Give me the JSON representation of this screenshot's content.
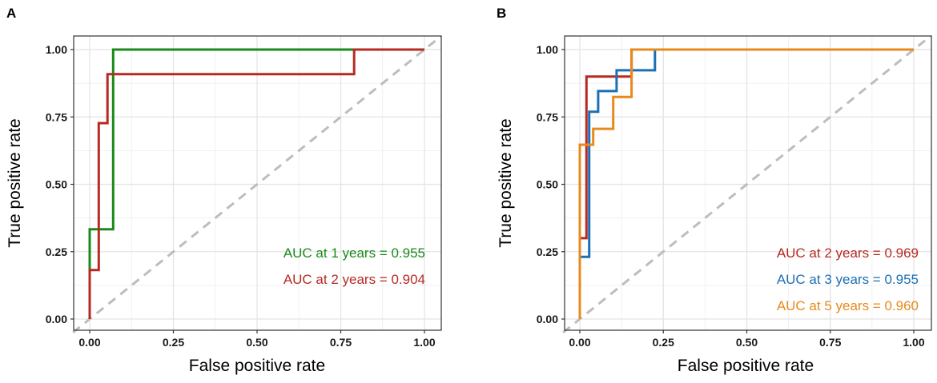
{
  "chart_data": [
    {
      "panel_label": "A",
      "type": "line",
      "xlabel": "False positive rate",
      "ylabel": "True positive rate",
      "xlim": [
        0,
        1
      ],
      "ylim": [
        0,
        1
      ],
      "x_ticks": [
        "0.00",
        "0.25",
        "0.50",
        "0.75",
        "1.00"
      ],
      "y_ticks": [
        "0.00",
        "0.25",
        "0.50",
        "0.75",
        "1.00"
      ],
      "grid": true,
      "legend_position": "bottom-right",
      "reference_line": {
        "color": "#bdbdbd",
        "style": "dashed"
      },
      "series": [
        {
          "name": "AUC at 1 years = 0.955",
          "color": "#1a8a1a",
          "x": [
            0.0,
            0.0,
            0.07,
            0.07,
            1.0
          ],
          "y": [
            0.0,
            0.333,
            0.333,
            1.0,
            1.0
          ]
        },
        {
          "name": "AUC at 2 years = 0.904",
          "color": "#b52b22",
          "x": [
            0.0,
            0.0,
            0.027,
            0.027,
            0.053,
            0.053,
            0.79,
            0.79,
            1.0
          ],
          "y": [
            0.0,
            0.182,
            0.182,
            0.727,
            0.727,
            0.909,
            0.909,
            1.0,
            1.0
          ]
        }
      ]
    },
    {
      "panel_label": "B",
      "type": "line",
      "xlabel": "False positive rate",
      "ylabel": "True positive rate",
      "xlim": [
        0,
        1
      ],
      "ylim": [
        0,
        1
      ],
      "x_ticks": [
        "0.00",
        "0.25",
        "0.50",
        "0.75",
        "1.00"
      ],
      "y_ticks": [
        "0.00",
        "0.25",
        "0.50",
        "0.75",
        "1.00"
      ],
      "grid": true,
      "legend_position": "bottom-right",
      "reference_line": {
        "color": "#bdbdbd",
        "style": "dashed"
      },
      "series": [
        {
          "name": "AUC at 2 years = 0.969",
          "color": "#b52b22",
          "x": [
            0.0,
            0.0,
            0.02,
            0.02,
            0.07,
            0.07,
            0.155,
            0.155,
            1.0
          ],
          "y": [
            0.0,
            0.3,
            0.3,
            0.9,
            0.9,
            0.9,
            0.9,
            1.0,
            1.0
          ]
        },
        {
          "name": "AUC at 3 years = 0.955",
          "color": "#1b6fb5",
          "x": [
            0.0,
            0.0,
            0.028,
            0.028,
            0.055,
            0.055,
            0.11,
            0.11,
            0.155,
            0.155,
            0.225,
            0.225,
            1.0
          ],
          "y": [
            0.0,
            0.231,
            0.231,
            0.769,
            0.769,
            0.846,
            0.846,
            0.923,
            0.923,
            0.923,
            0.923,
            1.0,
            1.0
          ]
        },
        {
          "name": "AUC at 5 years = 0.960",
          "color": "#e8891c",
          "x": [
            0.0,
            0.0,
            0.02,
            0.02,
            0.04,
            0.04,
            0.1,
            0.1,
            0.155,
            0.155,
            1.0
          ],
          "y": [
            0.0,
            0.647,
            0.647,
            0.647,
            0.647,
            0.706,
            0.706,
            0.824,
            0.824,
            1.0,
            1.0
          ]
        }
      ]
    }
  ]
}
